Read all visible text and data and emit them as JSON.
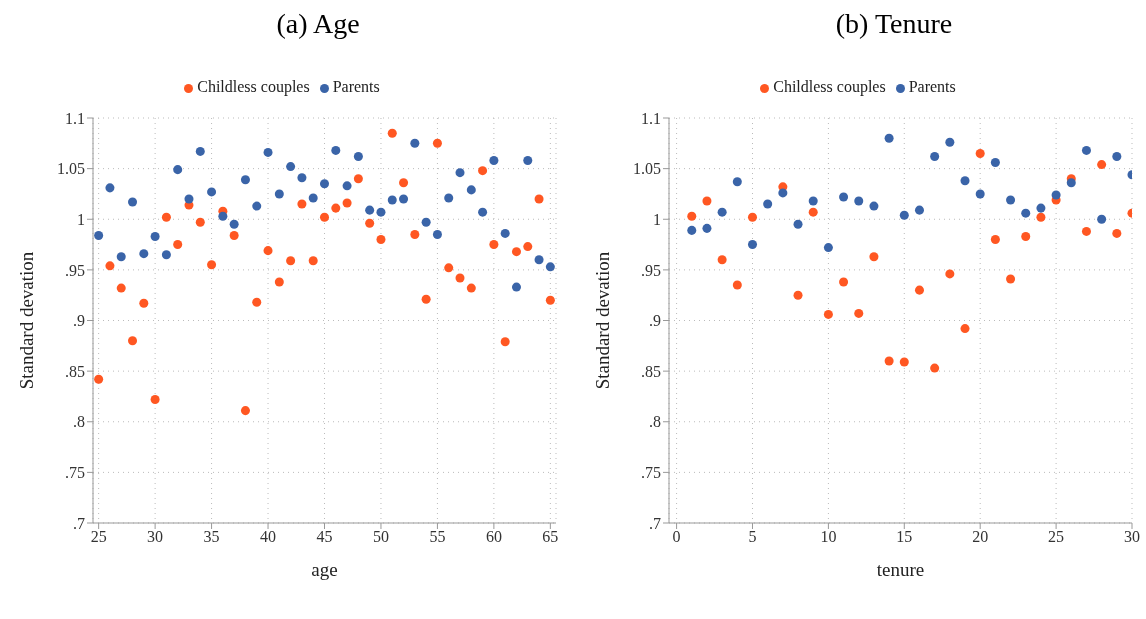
{
  "chart_data": [
    {
      "type": "scatter",
      "title": "(a) Age",
      "xlabel": "age",
      "ylabel": "Standard devation",
      "x": [
        25,
        26,
        27,
        28,
        29,
        30,
        31,
        32,
        33,
        34,
        35,
        36,
        37,
        38,
        39,
        40,
        41,
        42,
        43,
        44,
        45,
        46,
        47,
        48,
        49,
        50,
        51,
        52,
        53,
        54,
        55,
        56,
        57,
        58,
        59,
        60,
        61,
        62,
        63,
        64,
        65
      ],
      "series": [
        {
          "name": "Childless couples",
          "color": "#ff5722",
          "values": [
            0.842,
            0.954,
            0.932,
            0.88,
            0.917,
            0.822,
            1.002,
            0.975,
            1.014,
            0.997,
            0.955,
            1.008,
            0.984,
            0.811,
            0.918,
            0.969,
            0.938,
            0.959,
            1.015,
            0.959,
            1.002,
            1.011,
            1.016,
            1.04,
            0.996,
            0.98,
            1.085,
            1.036,
            0.985,
            0.921,
            1.075,
            0.952,
            0.942,
            0.932,
            1.048,
            0.975,
            0.879,
            0.968,
            0.973,
            1.02,
            0.92
          ]
        },
        {
          "name": "Parents",
          "color": "#3a64a8",
          "values": [
            0.984,
            1.031,
            0.963,
            1.017,
            0.966,
            0.983,
            0.965,
            1.049,
            1.02,
            1.067,
            1.027,
            1.003,
            0.995,
            1.039,
            1.013,
            1.066,
            1.025,
            1.052,
            1.041,
            1.021,
            1.035,
            1.068,
            1.033,
            1.062,
            1.009,
            1.007,
            1.019,
            1.02,
            1.075,
            0.997,
            0.985,
            1.021,
            1.046,
            1.029,
            1.007,
            1.058,
            0.986,
            0.933,
            1.058,
            0.96,
            0.953
          ]
        }
      ],
      "xlim": [
        24.5,
        65.5
      ],
      "xticks": [
        25,
        30,
        35,
        40,
        45,
        50,
        55,
        60,
        65
      ],
      "ylim": [
        0.7,
        1.1
      ],
      "yticks": [
        {
          "value": 0.7,
          "label": ".7"
        },
        {
          "value": 0.75,
          "label": ".75"
        },
        {
          "value": 0.8,
          "label": ".8"
        },
        {
          "value": 0.85,
          "label": ".85"
        },
        {
          "value": 0.9,
          "label": ".9"
        },
        {
          "value": 0.95,
          "label": ".95"
        },
        {
          "value": 1,
          "label": "1"
        },
        {
          "value": 1.05,
          "label": "1.05"
        },
        {
          "value": 1.1,
          "label": "1.1"
        }
      ],
      "grid": true,
      "legend": "top",
      "marker": "circle"
    },
    {
      "type": "scatter",
      "title": "(b) Tenure",
      "xlabel": "tenure",
      "ylabel": "Standard devation",
      "x": [
        1,
        2,
        3,
        4,
        5,
        6,
        7,
        8,
        9,
        10,
        11,
        12,
        13,
        14,
        15,
        16,
        17,
        18,
        19,
        20,
        21,
        22,
        23,
        24,
        25,
        26,
        27,
        28,
        29,
        30
      ],
      "series": [
        {
          "name": "Childless couples",
          "color": "#ff5722",
          "values": [
            1.003,
            1.018,
            0.96,
            0.935,
            1.002,
            null,
            1.032,
            0.925,
            1.007,
            0.906,
            0.938,
            0.907,
            0.963,
            0.86,
            0.859,
            0.93,
            0.853,
            0.946,
            0.892,
            1.065,
            0.98,
            0.941,
            0.983,
            1.002,
            1.019,
            1.04,
            0.988,
            1.054,
            0.986,
            1.006
          ]
        },
        {
          "name": "Parents",
          "color": "#3a64a8",
          "values": [
            0.989,
            0.991,
            1.007,
            1.037,
            0.975,
            1.015,
            1.026,
            0.995,
            1.018,
            0.972,
            1.022,
            1.018,
            1.013,
            1.08,
            1.004,
            1.009,
            1.062,
            1.076,
            1.038,
            1.025,
            1.056,
            1.019,
            1.006,
            1.011,
            1.024,
            1.036,
            1.068,
            1.0,
            1.062,
            1.044
          ]
        }
      ],
      "xlim": [
        -0.5,
        30
      ],
      "xticks": [
        0,
        5,
        10,
        15,
        20,
        25,
        30
      ],
      "ylim": [
        0.7,
        1.1
      ],
      "yticks": [
        {
          "value": 0.7,
          "label": ".7"
        },
        {
          "value": 0.75,
          "label": ".75"
        },
        {
          "value": 0.8,
          "label": ".8"
        },
        {
          "value": 0.85,
          "label": ".85"
        },
        {
          "value": 0.9,
          "label": ".9"
        },
        {
          "value": 0.95,
          "label": ".95"
        },
        {
          "value": 1,
          "label": "1"
        },
        {
          "value": 1.05,
          "label": "1.05"
        },
        {
          "value": 1.1,
          "label": "1.1"
        }
      ],
      "grid": true,
      "legend": "top",
      "marker": "circle"
    }
  ]
}
